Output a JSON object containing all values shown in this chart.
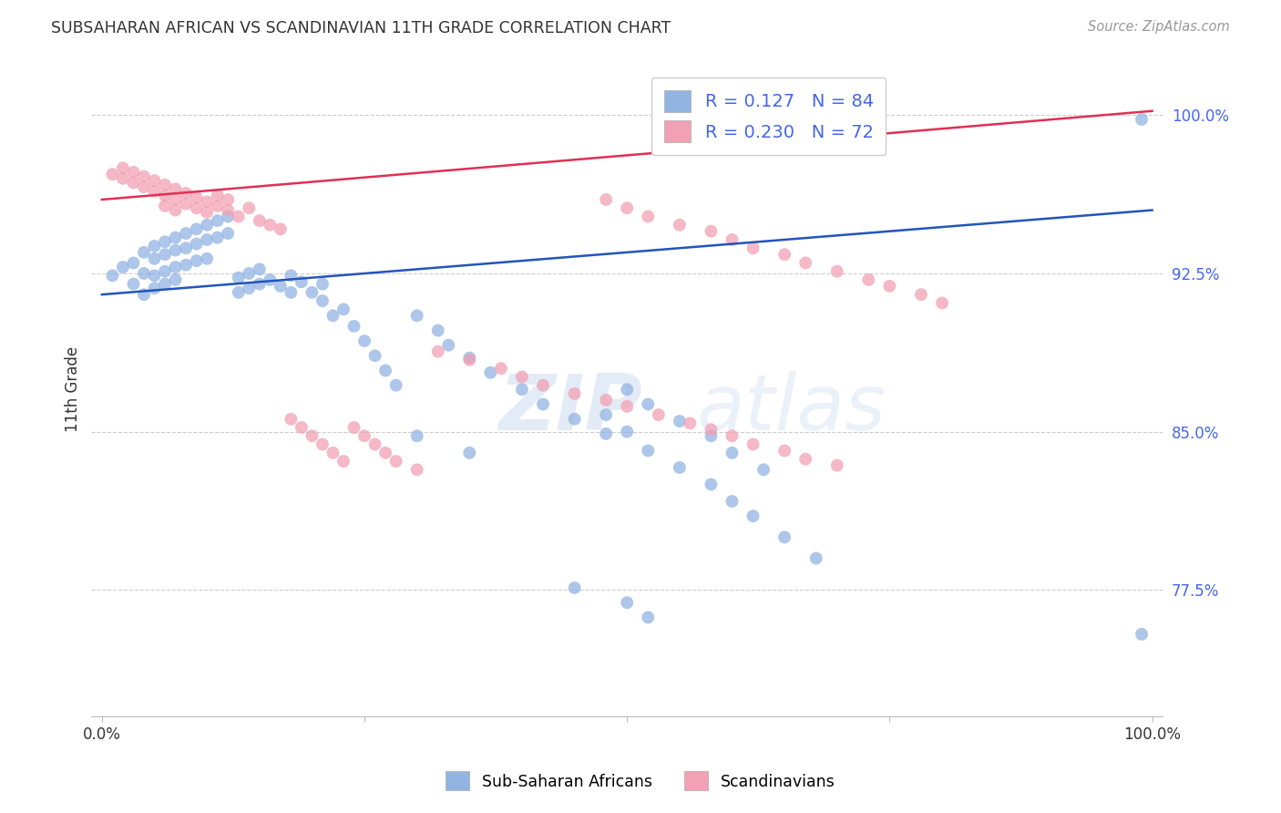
{
  "title": "SUBSAHARAN AFRICAN VS SCANDINAVIAN 11TH GRADE CORRELATION CHART",
  "source": "Source: ZipAtlas.com",
  "ylabel": "11th Grade",
  "ytick_labels": [
    "77.5%",
    "85.0%",
    "92.5%",
    "100.0%"
  ],
  "ytick_values": [
    0.775,
    0.85,
    0.925,
    1.0
  ],
  "xlim": [
    -0.01,
    1.01
  ],
  "ylim": [
    0.715,
    1.025
  ],
  "legend_r1": "R = 0.127",
  "legend_n1": "N = 84",
  "legend_r2": "R = 0.230",
  "legend_n2": "N = 72",
  "blue_color": "#92B4E3",
  "pink_color": "#F2A0B5",
  "trendline_blue": "#2255BB",
  "trendline_pink": "#E03055",
  "background_color": "#ffffff",
  "grid_color": "#cccccc",
  "watermark_color": "#C8D8EE",
  "title_color": "#333333",
  "source_color": "#999999",
  "ytick_color": "#4466EE",
  "xtick_color": "#333333",
  "ylabel_color": "#333333",
  "blue_trendline_x0": 0.0,
  "blue_trendline_y0": 0.915,
  "blue_trendline_x1": 1.0,
  "blue_trendline_y1": 0.955,
  "pink_trendline_x0": 0.0,
  "pink_trendline_y0": 0.96,
  "pink_trendline_x1": 1.0,
  "pink_trendline_y1": 1.002,
  "blue_x": [
    0.01,
    0.02,
    0.03,
    0.03,
    0.04,
    0.04,
    0.04,
    0.05,
    0.05,
    0.05,
    0.05,
    0.06,
    0.06,
    0.06,
    0.06,
    0.07,
    0.07,
    0.07,
    0.07,
    0.08,
    0.08,
    0.08,
    0.09,
    0.09,
    0.09,
    0.1,
    0.1,
    0.1,
    0.11,
    0.11,
    0.12,
    0.12,
    0.13,
    0.13,
    0.14,
    0.14,
    0.15,
    0.15,
    0.16,
    0.17,
    0.18,
    0.18,
    0.19,
    0.2,
    0.21,
    0.21,
    0.22,
    0.23,
    0.24,
    0.25,
    0.26,
    0.27,
    0.28,
    0.3,
    0.32,
    0.33,
    0.35,
    0.37,
    0.4,
    0.42,
    0.45,
    0.48,
    0.5,
    0.52,
    0.55,
    0.58,
    0.6,
    0.63,
    0.3,
    0.35,
    0.48,
    0.5,
    0.52,
    0.55,
    0.58,
    0.6,
    0.62,
    0.65,
    0.68,
    0.45,
    0.5,
    0.52,
    0.99,
    0.99
  ],
  "blue_y": [
    0.924,
    0.928,
    0.93,
    0.92,
    0.935,
    0.925,
    0.915,
    0.938,
    0.932,
    0.924,
    0.918,
    0.94,
    0.934,
    0.926,
    0.92,
    0.942,
    0.936,
    0.928,
    0.922,
    0.944,
    0.937,
    0.929,
    0.946,
    0.939,
    0.931,
    0.948,
    0.941,
    0.932,
    0.95,
    0.942,
    0.952,
    0.944,
    0.923,
    0.916,
    0.925,
    0.918,
    0.927,
    0.92,
    0.922,
    0.919,
    0.924,
    0.916,
    0.921,
    0.916,
    0.92,
    0.912,
    0.905,
    0.908,
    0.9,
    0.893,
    0.886,
    0.879,
    0.872,
    0.905,
    0.898,
    0.891,
    0.885,
    0.878,
    0.87,
    0.863,
    0.856,
    0.849,
    0.87,
    0.863,
    0.855,
    0.848,
    0.84,
    0.832,
    0.848,
    0.84,
    0.858,
    0.85,
    0.841,
    0.833,
    0.825,
    0.817,
    0.81,
    0.8,
    0.79,
    0.776,
    0.769,
    0.762,
    0.754,
    0.998
  ],
  "pink_x": [
    0.01,
    0.02,
    0.02,
    0.03,
    0.03,
    0.04,
    0.04,
    0.05,
    0.05,
    0.06,
    0.06,
    0.06,
    0.07,
    0.07,
    0.07,
    0.08,
    0.08,
    0.09,
    0.09,
    0.1,
    0.1,
    0.11,
    0.11,
    0.12,
    0.12,
    0.13,
    0.14,
    0.15,
    0.16,
    0.17,
    0.18,
    0.19,
    0.2,
    0.21,
    0.22,
    0.23,
    0.24,
    0.25,
    0.26,
    0.27,
    0.28,
    0.3,
    0.32,
    0.35,
    0.38,
    0.4,
    0.42,
    0.45,
    0.48,
    0.5,
    0.53,
    0.56,
    0.58,
    0.6,
    0.62,
    0.65,
    0.67,
    0.7,
    0.48,
    0.5,
    0.52,
    0.55,
    0.58,
    0.6,
    0.62,
    0.65,
    0.67,
    0.7,
    0.73,
    0.75,
    0.78,
    0.8
  ],
  "pink_y": [
    0.972,
    0.97,
    0.975,
    0.968,
    0.973,
    0.966,
    0.971,
    0.964,
    0.969,
    0.967,
    0.962,
    0.957,
    0.965,
    0.96,
    0.955,
    0.963,
    0.958,
    0.961,
    0.956,
    0.959,
    0.954,
    0.957,
    0.962,
    0.955,
    0.96,
    0.952,
    0.956,
    0.95,
    0.948,
    0.946,
    0.856,
    0.852,
    0.848,
    0.844,
    0.84,
    0.836,
    0.852,
    0.848,
    0.844,
    0.84,
    0.836,
    0.832,
    0.888,
    0.884,
    0.88,
    0.876,
    0.872,
    0.868,
    0.865,
    0.862,
    0.858,
    0.854,
    0.851,
    0.848,
    0.844,
    0.841,
    0.837,
    0.834,
    0.96,
    0.956,
    0.952,
    0.948,
    0.945,
    0.941,
    0.937,
    0.934,
    0.93,
    0.926,
    0.922,
    0.919,
    0.915,
    0.911
  ]
}
